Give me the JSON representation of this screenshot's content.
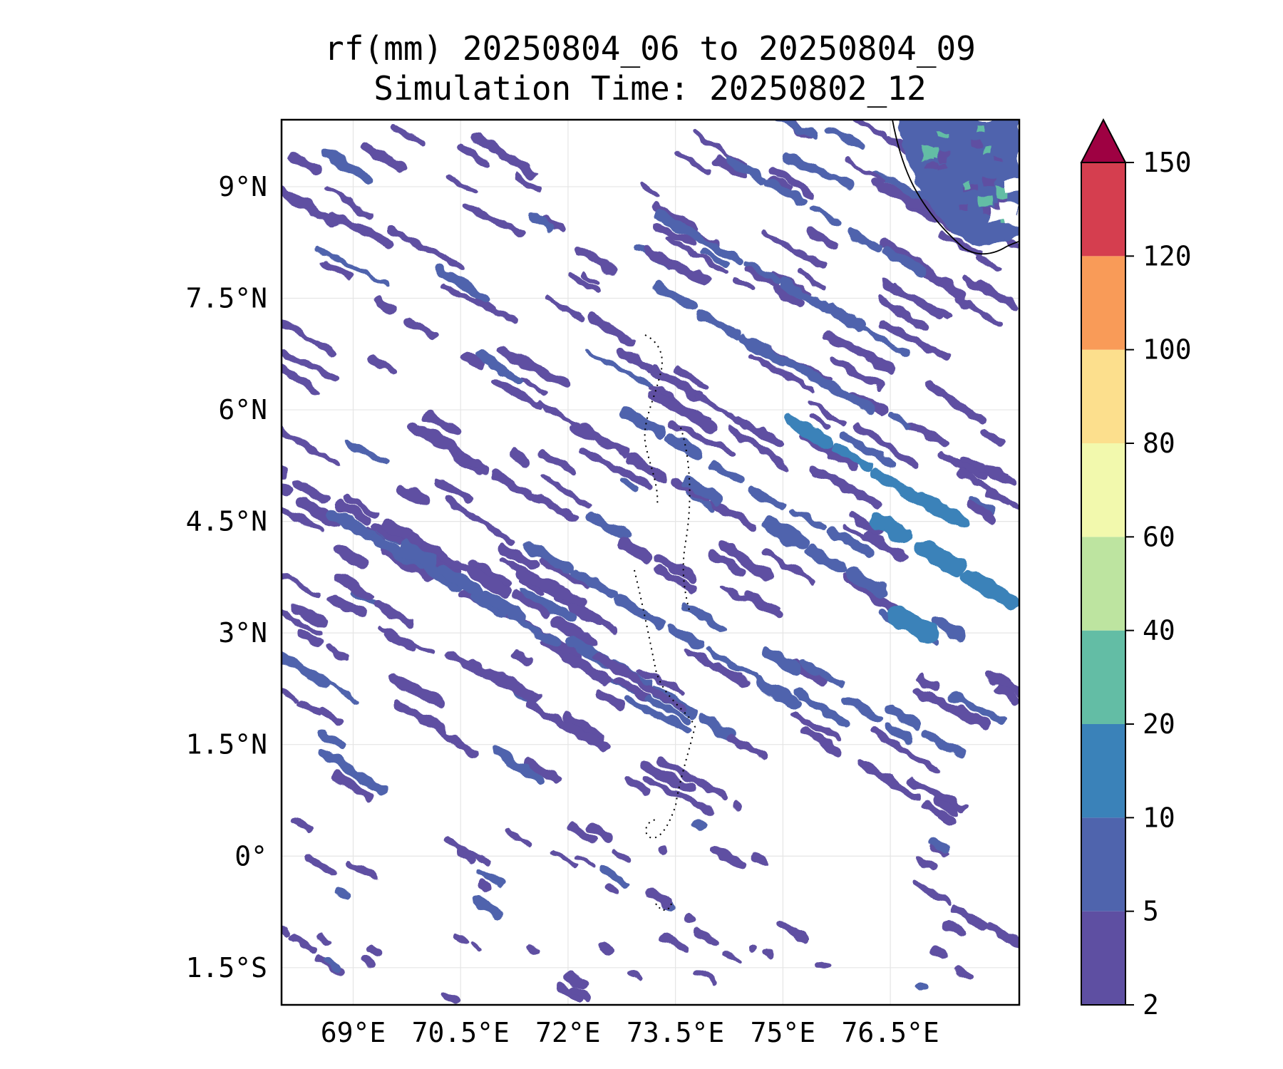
{
  "title": {
    "line1": "rf(mm) 20250804_06 to 20250804_09",
    "line2": "Simulation Time: 20250802_12"
  },
  "map": {
    "lon_range": [
      68.0,
      78.3
    ],
    "lat_range": [
      -2.0,
      9.9
    ],
    "gridlines": true,
    "coastline": "southern tip of India (Kerala) in the upper-right corner",
    "islands": "dotted outlines of the Maldives atolls near 73.5°E"
  },
  "axes": {
    "x_ticks": [
      {
        "value": 69,
        "label": "69°E"
      },
      {
        "value": 70.5,
        "label": "70.5°E"
      },
      {
        "value": 72,
        "label": "72°E"
      },
      {
        "value": 73.5,
        "label": "73.5°E"
      },
      {
        "value": 75,
        "label": "75°E"
      },
      {
        "value": 76.5,
        "label": "76.5°E"
      }
    ],
    "y_ticks": [
      {
        "value": 9,
        "label": "9°N"
      },
      {
        "value": 7.5,
        "label": "7.5°N"
      },
      {
        "value": 6,
        "label": "6°N"
      },
      {
        "value": 4.5,
        "label": "4.5°N"
      },
      {
        "value": 3,
        "label": "3°N"
      },
      {
        "value": 1.5,
        "label": "1.5°N"
      },
      {
        "value": 0,
        "label": "0°"
      },
      {
        "value": -1.5,
        "label": "1.5°S"
      }
    ]
  },
  "colorbar": {
    "levels": [
      2,
      5,
      10,
      20,
      40,
      60,
      80,
      100,
      120,
      150
    ],
    "labels": [
      "2",
      "5",
      "10",
      "20",
      "40",
      "60",
      "80",
      "100",
      "120",
      "150"
    ],
    "colors": [
      "#5e4fa2",
      "#4f64ad",
      "#3a82b9",
      "#63bda5",
      "#bde4a0",
      "#f2f9ad",
      "#fcdf8d",
      "#f99b58",
      "#d53e4f"
    ],
    "extend_color": "#9e0142",
    "extend": "max"
  },
  "chart_data": {
    "type": "heatmap",
    "title": "rf(mm) 20250804_06 to 20250804_09",
    "subtitle": "Simulation Time: 20250802_12",
    "variable": "rf(mm)",
    "bands": [
      {
        "lon": 69.0,
        "lat": 4.6,
        "length": 4.8,
        "width": 0.13,
        "level": 0
      },
      {
        "lon": 70.0,
        "lat": 4.2,
        "length": 5.5,
        "width": 0.14,
        "level": 0
      },
      {
        "lon": 70.4,
        "lat": 3.6,
        "length": 6.5,
        "width": 0.16,
        "level": 0
      },
      {
        "lon": 71.2,
        "lat": 3.2,
        "length": 5.8,
        "width": 0.15,
        "level": 1
      },
      {
        "lon": 72.0,
        "lat": 2.9,
        "length": 5.5,
        "width": 0.18,
        "level": 1
      },
      {
        "lon": 73.0,
        "lat": 3.3,
        "length": 5.2,
        "width": 0.14,
        "level": 1
      },
      {
        "lon": 71.8,
        "lat": 4.7,
        "length": 4.6,
        "width": 0.13,
        "level": 0
      },
      {
        "lon": 72.8,
        "lat": 5.4,
        "length": 4.2,
        "width": 0.12,
        "level": 0
      },
      {
        "lon": 73.8,
        "lat": 6.2,
        "length": 4.0,
        "width": 0.12,
        "level": 0
      },
      {
        "lon": 74.4,
        "lat": 7.0,
        "length": 4.2,
        "width": 0.13,
        "level": 1
      },
      {
        "lon": 75.0,
        "lat": 7.7,
        "length": 4.0,
        "width": 0.12,
        "level": 1
      },
      {
        "lon": 75.6,
        "lat": 8.6,
        "length": 3.2,
        "width": 0.12,
        "level": 1
      },
      {
        "lon": 74.5,
        "lat": 5.0,
        "length": 4.0,
        "width": 0.16,
        "level": 1
      },
      {
        "lon": 75.6,
        "lat": 4.0,
        "length": 4.6,
        "width": 0.18,
        "level": 1
      },
      {
        "lon": 76.6,
        "lat": 5.0,
        "length": 3.6,
        "width": 0.2,
        "level": 2
      },
      {
        "lon": 77.2,
        "lat": 4.0,
        "length": 2.4,
        "width": 0.22,
        "level": 2
      },
      {
        "lon": 77.4,
        "lat": 2.8,
        "length": 2.0,
        "width": 0.25,
        "level": 2
      },
      {
        "lon": 75.0,
        "lat": 2.6,
        "length": 3.2,
        "width": 0.13,
        "level": 1
      },
      {
        "lon": 76.4,
        "lat": 2.0,
        "length": 2.6,
        "width": 0.12,
        "level": 1
      },
      {
        "lon": 73.6,
        "lat": 2.0,
        "length": 2.8,
        "width": 0.12,
        "level": 0
      },
      {
        "lon": 71.4,
        "lat": 2.1,
        "length": 2.6,
        "width": 0.12,
        "level": 0
      },
      {
        "lon": 68.8,
        "lat": 2.7,
        "length": 1.4,
        "width": 0.1,
        "level": 0
      },
      {
        "lon": 69.0,
        "lat": 3.6,
        "length": 2.0,
        "width": 0.1,
        "level": 0
      },
      {
        "lon": 68.4,
        "lat": 2.0,
        "length": 1.0,
        "width": 0.1,
        "level": 0
      },
      {
        "lon": 77.6,
        "lat": -0.8,
        "length": 1.8,
        "width": 0.12,
        "level": 0
      },
      {
        "lon": 68.3,
        "lat": -1.2,
        "length": 1.2,
        "width": 0.12,
        "level": 0
      }
    ],
    "land_region": {
      "lon_range": [
        77.3,
        78.3
      ],
      "lat_range": [
        8.2,
        9.9
      ],
      "dominant_level": 1,
      "max_level": 3
    }
  }
}
